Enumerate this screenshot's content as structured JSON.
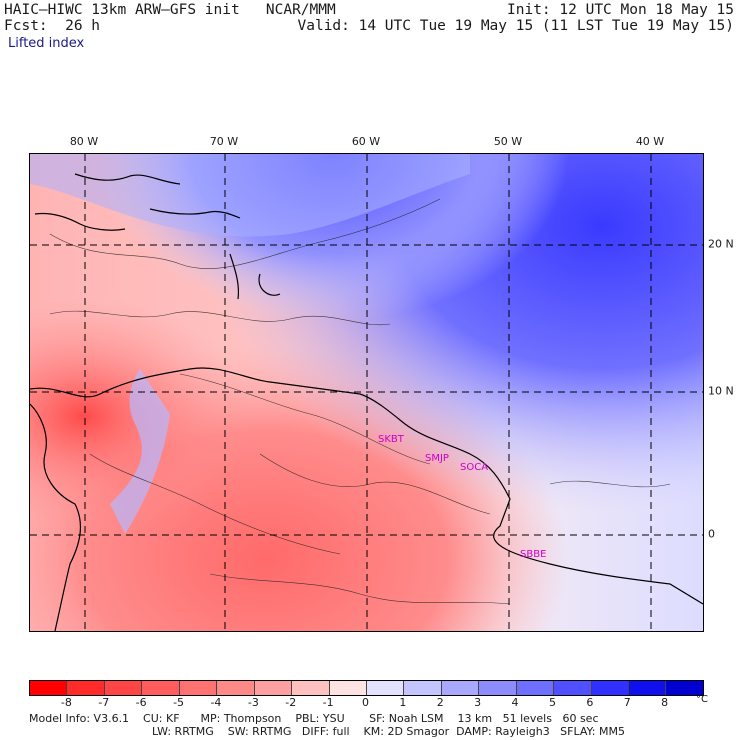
{
  "header": {
    "model_title": "HAIC–HIWC 13km ARW–GFS init   NCAR/MMM",
    "init": "Init: 12 UTC Mon 18 May 15",
    "fcst": "Fcst:  26 h",
    "valid": "Valid: 14 UTC Tue 19 May 15 (11 LST Tue 19 May 15)",
    "field": "Lifted index"
  },
  "axes": {
    "lon_labels": [
      "80 W",
      "70 W",
      "60 W",
      "50 W",
      "40 W"
    ],
    "lat_labels": [
      "20 N",
      "10 N",
      "0"
    ]
  },
  "stations": [
    "SKBT",
    "SMJP",
    "SOCA",
    "SBBE"
  ],
  "colorbar": {
    "ticks": [
      "-8",
      "-7",
      "-6",
      "-5",
      "-4",
      "-3",
      "-2",
      "-1",
      "0",
      "1",
      "2",
      "3",
      "4",
      "5",
      "6",
      "7",
      "8"
    ],
    "unit": "°C",
    "colors": [
      "#ff0000",
      "#ff2a2a",
      "#ff4545",
      "#ff5d5d",
      "#ff7272",
      "#ff8888",
      "#ffa0a0",
      "#ffc0c0",
      "#ffe2e2",
      "#e2e2ff",
      "#c4c4ff",
      "#a8a8ff",
      "#8c8cff",
      "#6f6fff",
      "#5050ff",
      "#3030ff",
      "#1010ee",
      "#0000d0"
    ]
  },
  "footer": {
    "line1": "Model Info: V3.6.1    CU: KF      MP: Thompson    PBL: YSU       SF: Noah LSM    13 km   51 levels   60 sec",
    "line2": "LW: RRTMG    SW: RRTMG   DIFF: full    KM: 2D Smagor  DAMP: Rayleigh3   SFLAY: MM5"
  }
}
